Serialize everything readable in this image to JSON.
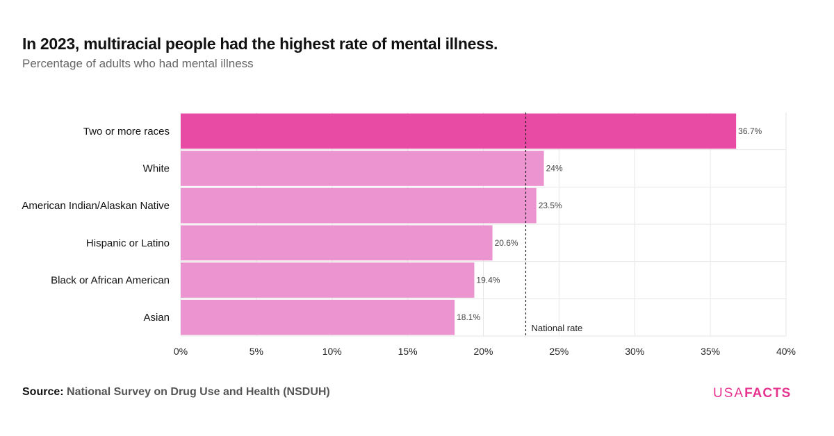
{
  "title": "In 2023, multiracial people had the highest rate of mental illness.",
  "subtitle": "Percentage of adults who had mental illness",
  "source_label": "Source:",
  "source_value": "National Survey on Drug Use and Health (NSDUH)",
  "logo": {
    "light": "USA",
    "bold": "FACTS"
  },
  "colors": {
    "highlight": "#e84ba3",
    "bar": "#eb94cf",
    "grid": "#e6e6e6",
    "logo": "#e6338f"
  },
  "chart_data": {
    "type": "bar",
    "orientation": "horizontal",
    "categories": [
      "Two or more races",
      "White",
      "American Indian/Alaskan Native",
      "Hispanic or Latino",
      "Black or African American",
      "Asian"
    ],
    "values": [
      36.7,
      24,
      23.5,
      20.6,
      19.4,
      18.1
    ],
    "data_labels": [
      "36.7%",
      "24%",
      "23.5%",
      "20.6%",
      "19.4%",
      "18.1%"
    ],
    "highlighted_category": "Two or more races",
    "xlim": [
      0,
      40
    ],
    "x_ticks": [
      0,
      5,
      10,
      15,
      20,
      25,
      30,
      35,
      40
    ],
    "x_tick_labels": [
      "0%",
      "5%",
      "10%",
      "15%",
      "20%",
      "25%",
      "30%",
      "35%",
      "40%"
    ],
    "grid": true,
    "reference_line": {
      "label": "National rate",
      "value": 22.8
    }
  }
}
